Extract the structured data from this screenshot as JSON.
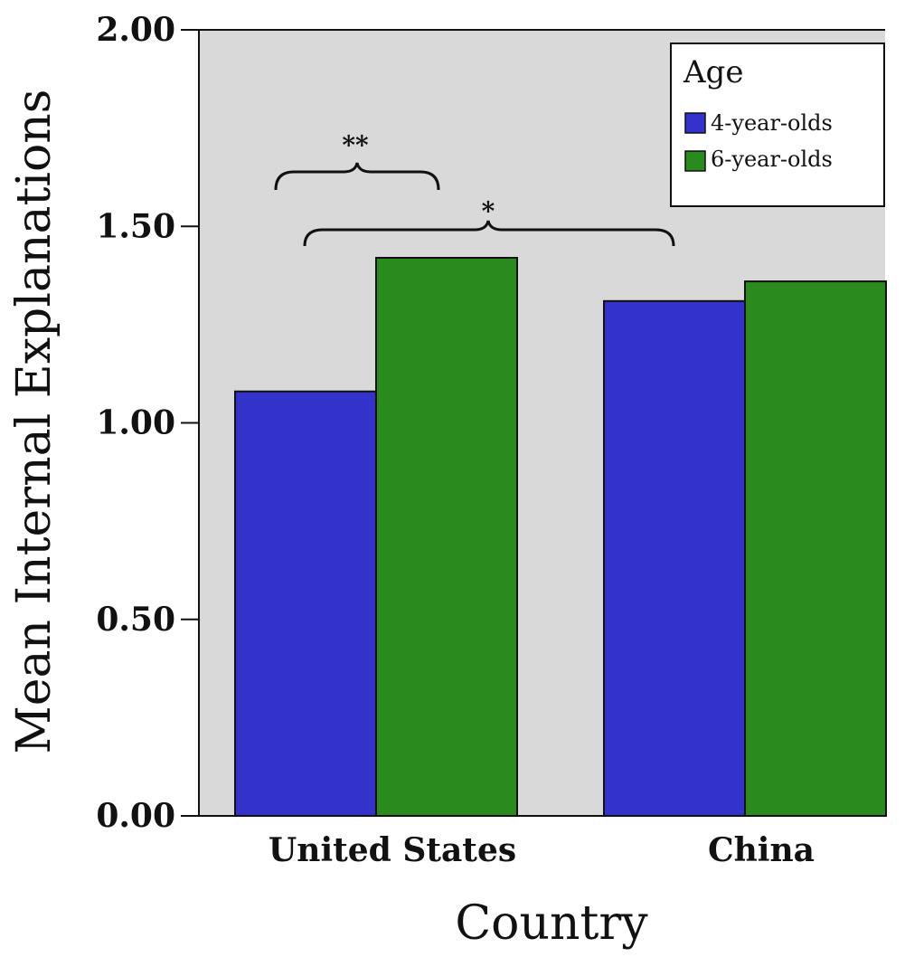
{
  "chart_data": {
    "type": "bar",
    "title": "",
    "xlabel": "Country",
    "ylabel": "Mean Internal Explanations",
    "ylim": [
      0,
      2.0
    ],
    "yticks": [
      "0.00",
      "0.50",
      "1.00",
      "1.50",
      "2.00"
    ],
    "categories": [
      "United States",
      "China"
    ],
    "series": [
      {
        "name": "4-year-olds",
        "values": [
          1.08,
          1.31
        ],
        "color": "#3333cc"
      },
      {
        "name": "6-year-olds",
        "values": [
          1.42,
          1.36
        ],
        "color": "#2a8a1e"
      }
    ],
    "legend": {
      "title": "Age",
      "position": "top-right"
    },
    "annotations": [
      {
        "label": "**",
        "span": "United States 4-year-olds vs United States 6-year-olds"
      },
      {
        "label": "*",
        "span": "United States 4-year-olds vs China 4-year-olds"
      }
    ],
    "plot_background": "#d9d9d9",
    "grid": false
  }
}
